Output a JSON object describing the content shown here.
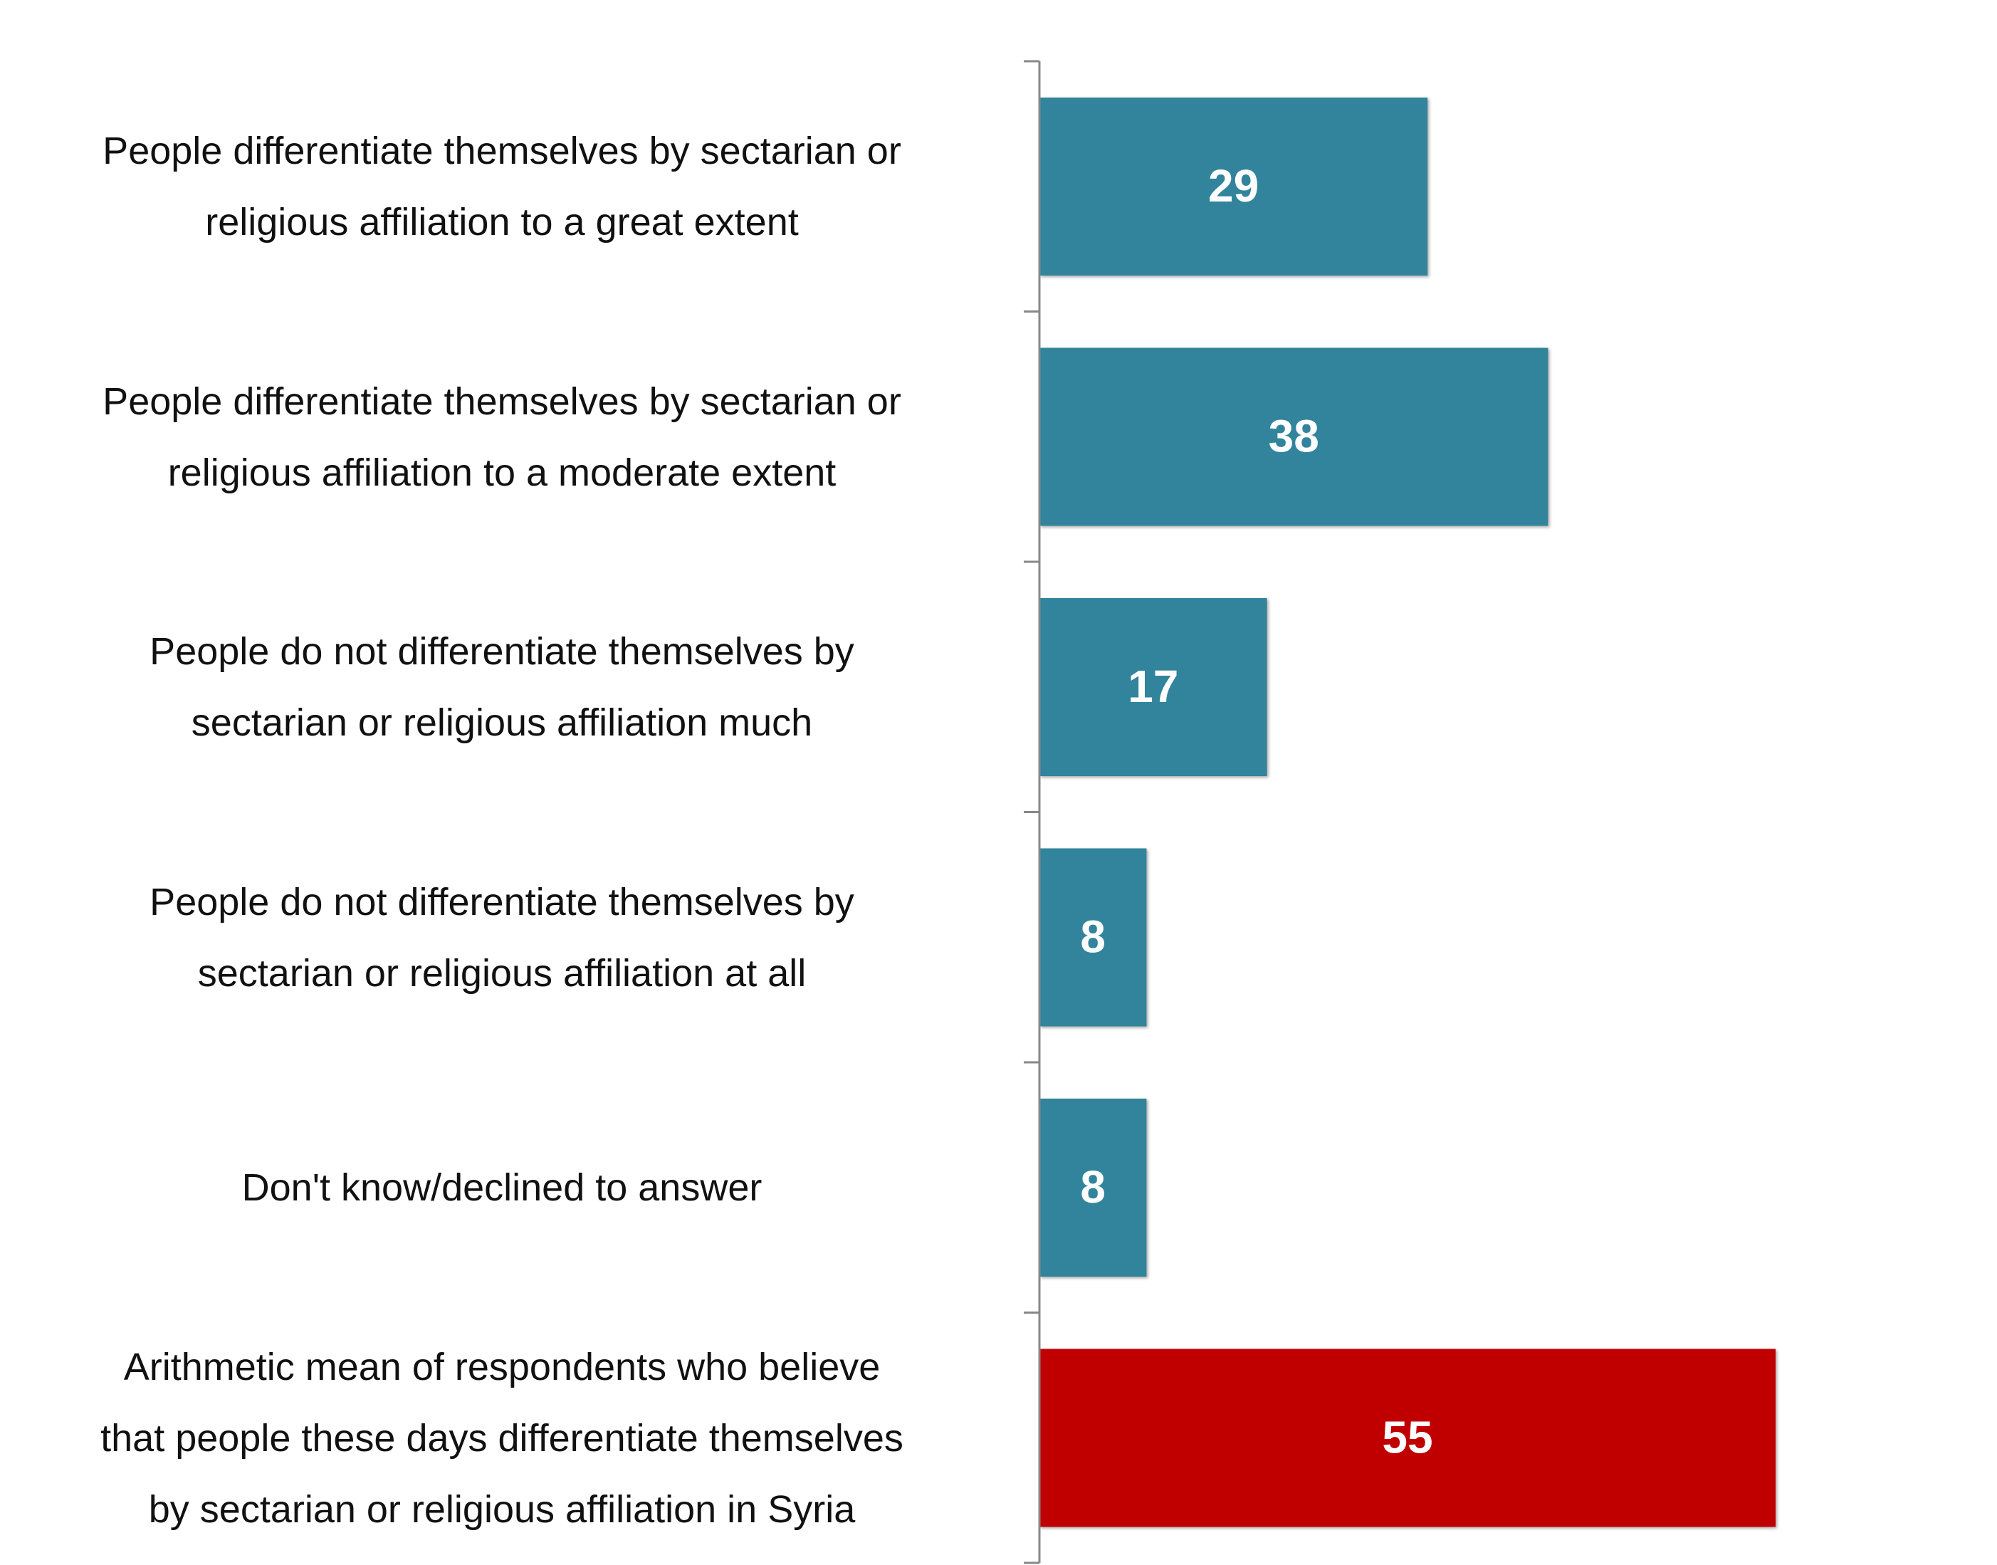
{
  "chart_data": {
    "type": "bar",
    "orientation": "horizontal",
    "categories": [
      "People differentiate themselves by sectarian or\nreligious affiliation to a great extent",
      "People differentiate themselves by sectarian or\nreligious affiliation to a moderate extent",
      "People do not differentiate themselves by\nsectarian or religious affiliation much",
      "People do not differentiate themselves by\nsectarian or religious affiliation at all",
      "Don't know/declined to answer",
      "Arithmetic mean of respondents who believe\nthat people these days differentiate themselves\nby sectarian or religious affiliation in Syria"
    ],
    "values": [
      29,
      38,
      17,
      8,
      8,
      55
    ],
    "colors": [
      "#31849b",
      "#31849b",
      "#31849b",
      "#31849b",
      "#31849b",
      "#c00000"
    ]
  }
}
